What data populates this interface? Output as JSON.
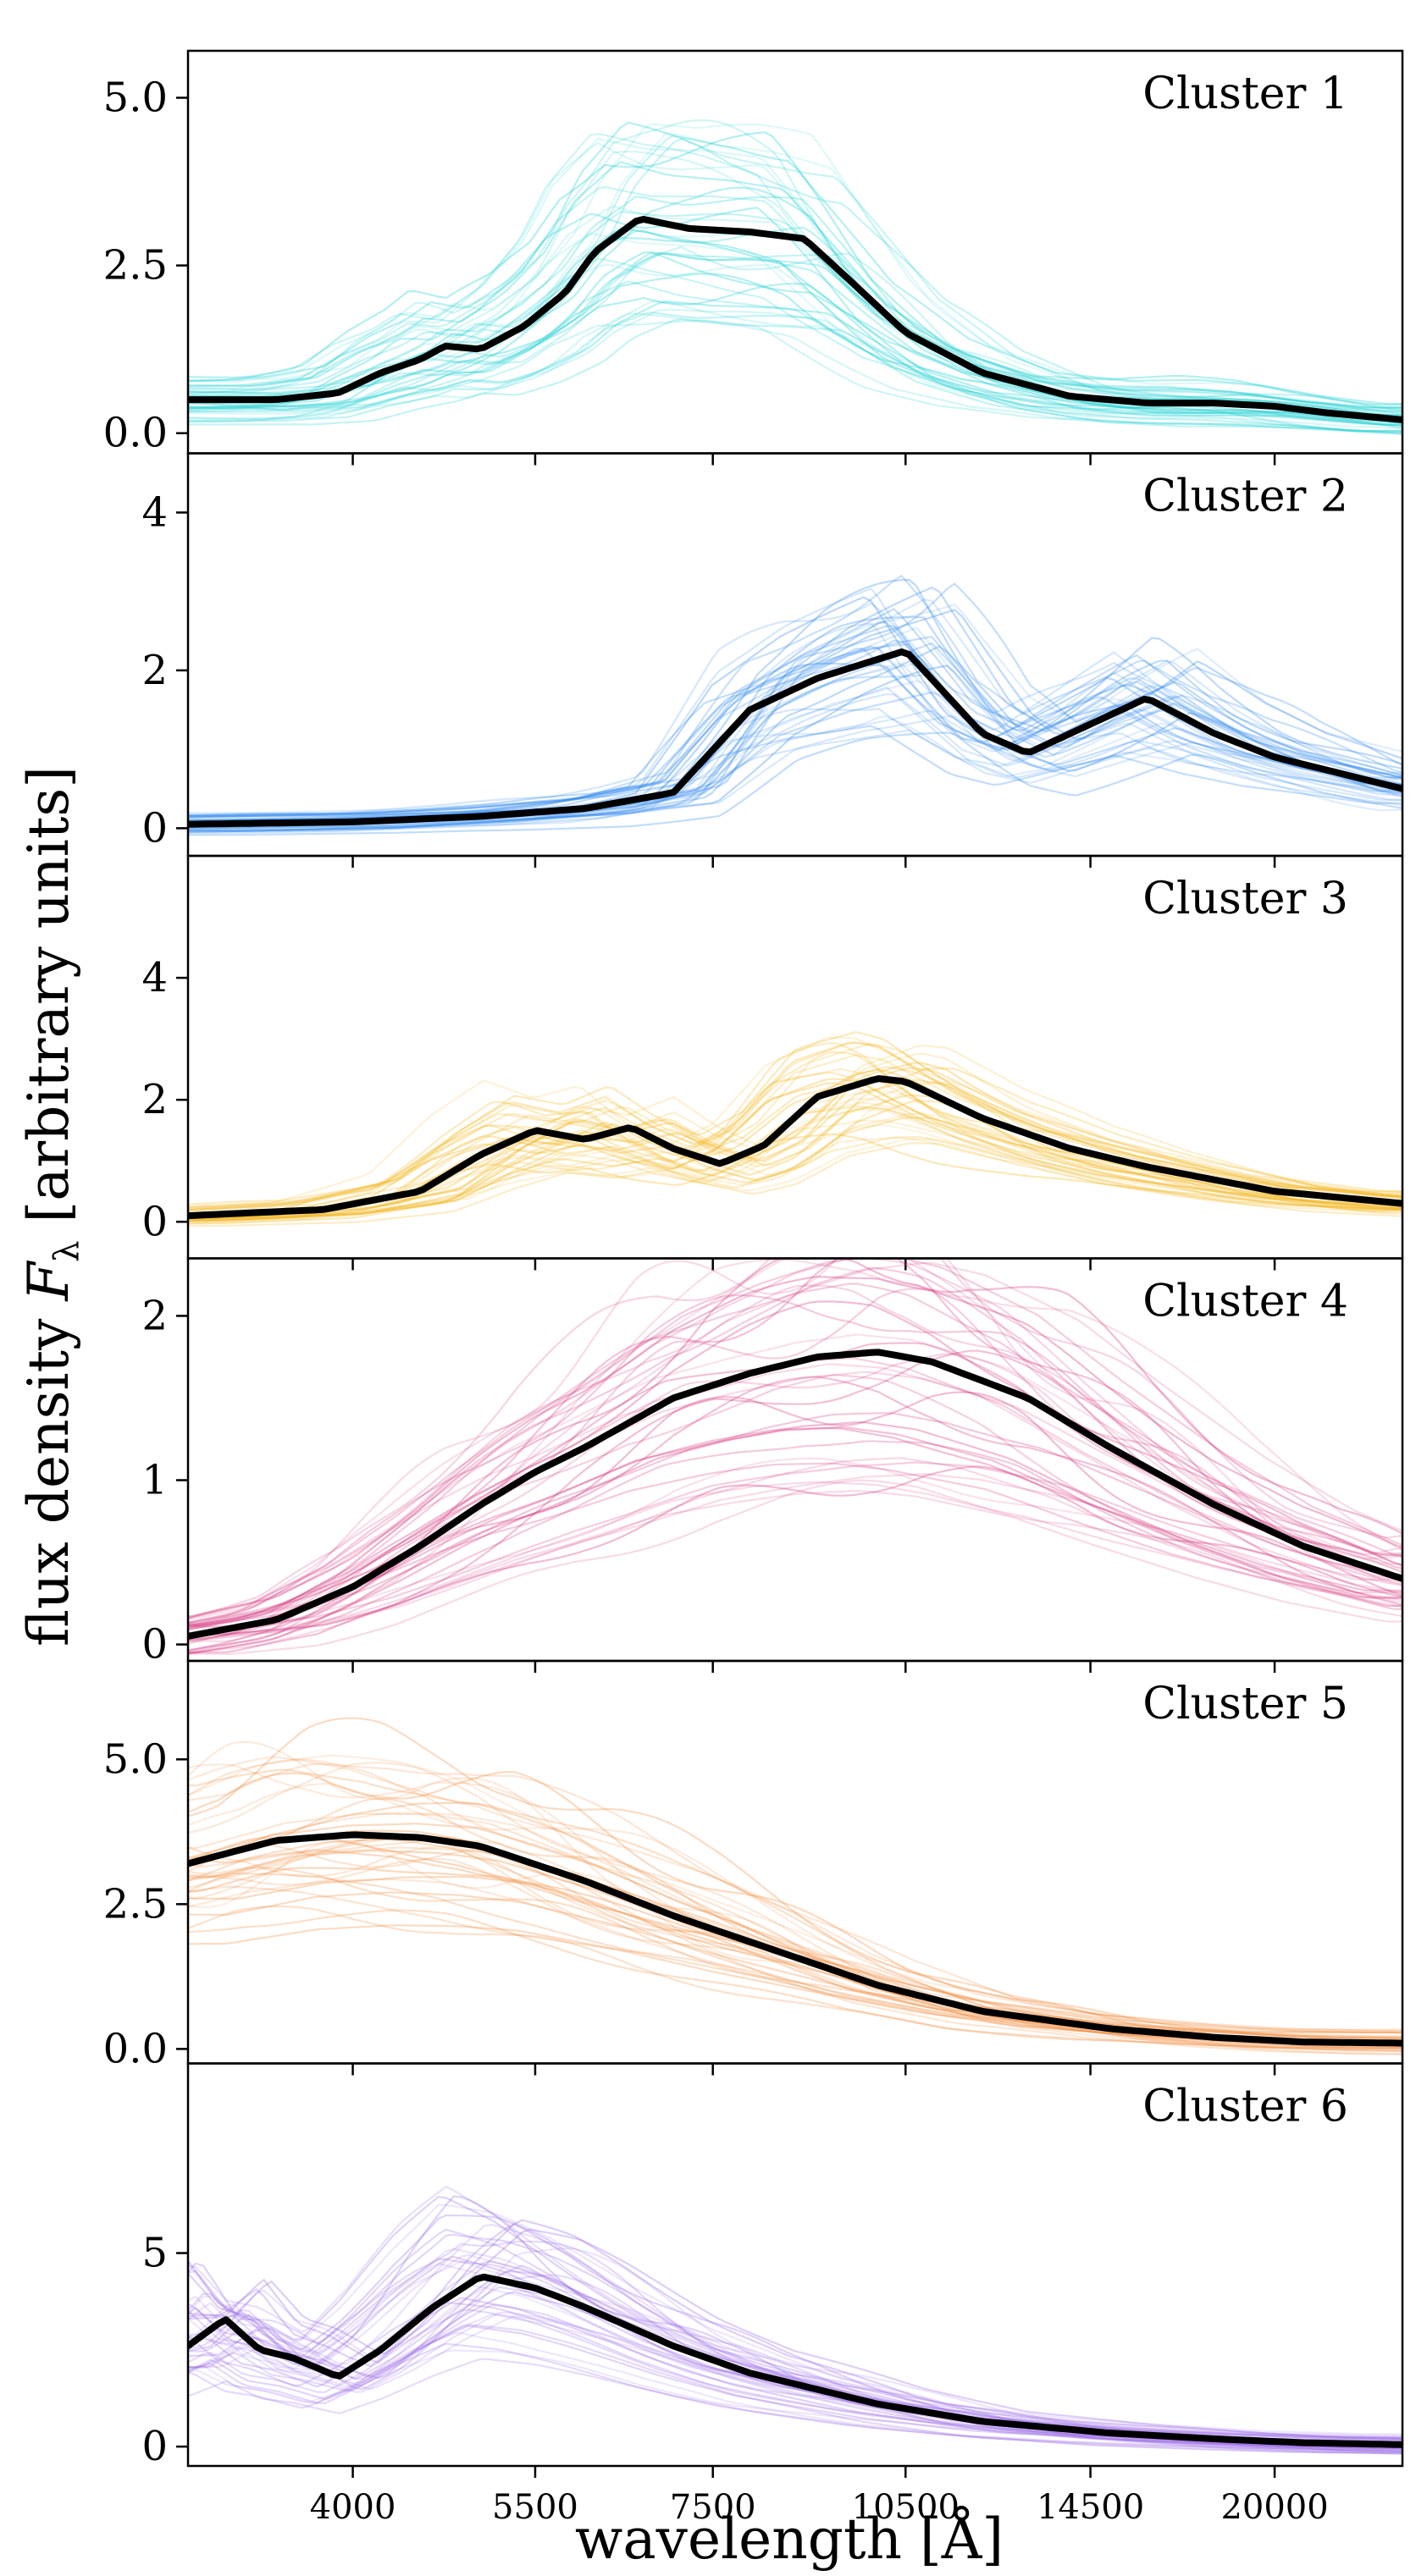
{
  "chart_data": {
    "type": "line",
    "xlabel_prefix": "wavelength ",
    "xlabel_unit": "[Å]",
    "ylabel_prefix": "flux density ",
    "ylabel_symbol": "F",
    "ylabel_subscript": "λ",
    "ylabel_suffix": " [arbitrary units]",
    "x_scale": "log",
    "xlim": [
      3000,
      25000
    ],
    "xticks": [
      {
        "value": 4000,
        "label": "4000"
      },
      {
        "value": 5500,
        "label": "5500"
      },
      {
        "value": 7500,
        "label": "7500"
      },
      {
        "value": 10500,
        "label": "10500"
      },
      {
        "value": 14500,
        "label": "14500"
      },
      {
        "value": 20000,
        "label": "20000"
      }
    ],
    "panels": [
      {
        "label": "Cluster 1",
        "color": "#1fd1d3",
        "ylim": [
          -0.3,
          5.7
        ],
        "yticks": [
          {
            "value": 0,
            "label": "0.0"
          },
          {
            "value": 2.5,
            "label": "2.5"
          },
          {
            "value": 5,
            "label": "5.0"
          }
        ],
        "mean": {
          "x": [
            3000,
            3500,
            3900,
            4200,
            4500,
            4700,
            5000,
            5400,
            5800,
            6100,
            6600,
            7200,
            8000,
            8800,
            9500,
            10500,
            12000,
            14000,
            16000,
            18000,
            20000,
            22000,
            25000
          ],
          "y": [
            0.5,
            0.5,
            0.6,
            0.9,
            1.1,
            1.3,
            1.25,
            1.6,
            2.1,
            2.7,
            3.2,
            3.05,
            3.0,
            2.9,
            2.3,
            1.5,
            0.9,
            0.55,
            0.45,
            0.45,
            0.4,
            0.3,
            0.2
          ]
        }
      },
      {
        "label": "Cluster 2",
        "color": "#2a86f0",
        "ylim": [
          -0.35,
          4.75
        ],
        "yticks": [
          {
            "value": 0,
            "label": "0"
          },
          {
            "value": 2,
            "label": "2"
          },
          {
            "value": 4,
            "label": "4"
          }
        ],
        "mean": {
          "x": [
            3000,
            4000,
            5000,
            6000,
            7000,
            8000,
            9000,
            10500,
            12000,
            13000,
            14000,
            16000,
            18000,
            20000,
            25000
          ],
          "y": [
            0.05,
            0.08,
            0.15,
            0.25,
            0.45,
            1.5,
            1.9,
            2.25,
            1.2,
            0.95,
            1.2,
            1.65,
            1.2,
            0.9,
            0.5
          ]
        }
      },
      {
        "label": "Cluster 3",
        "color": "#f4b418",
        "ylim": [
          -0.6,
          6.0
        ],
        "yticks": [
          {
            "value": 0,
            "label": "0"
          },
          {
            "value": 2,
            "label": "2"
          },
          {
            "value": 4,
            "label": "4"
          }
        ],
        "mean": {
          "x": [
            3000,
            3800,
            4500,
            5000,
            5500,
            6000,
            6500,
            7000,
            7600,
            8200,
            9000,
            10000,
            10500,
            12000,
            14000,
            16000,
            20000,
            25000
          ],
          "y": [
            0.1,
            0.2,
            0.5,
            1.1,
            1.5,
            1.35,
            1.55,
            1.2,
            0.95,
            1.25,
            2.05,
            2.35,
            2.3,
            1.7,
            1.2,
            0.9,
            0.5,
            0.3
          ]
        }
      },
      {
        "label": "Cluster 4",
        "color": "#d6337f",
        "ylim": [
          -0.1,
          2.35
        ],
        "yticks": [
          {
            "value": 0,
            "label": "0"
          },
          {
            "value": 1,
            "label": "1"
          },
          {
            "value": 2,
            "label": "2"
          }
        ],
        "mean": {
          "x": [
            3000,
            3500,
            4000,
            4500,
            5000,
            5500,
            6000,
            7000,
            8000,
            9000,
            10000,
            11000,
            13000,
            15000,
            18000,
            21000,
            25000
          ],
          "y": [
            0.05,
            0.15,
            0.35,
            0.6,
            0.85,
            1.05,
            1.2,
            1.5,
            1.65,
            1.75,
            1.78,
            1.72,
            1.5,
            1.2,
            0.85,
            0.6,
            0.4
          ]
        }
      },
      {
        "label": "Cluster 5",
        "color": "#f28b3c",
        "ylim": [
          -0.25,
          6.7
        ],
        "yticks": [
          {
            "value": 0,
            "label": "0.0"
          },
          {
            "value": 2.5,
            "label": "2.5"
          },
          {
            "value": 5,
            "label": "5.0"
          }
        ],
        "mean": {
          "x": [
            3000,
            3500,
            4000,
            4500,
            5000,
            6000,
            7000,
            8000,
            10000,
            12000,
            15000,
            18000,
            21000,
            25000
          ],
          "y": [
            3.2,
            3.6,
            3.7,
            3.65,
            3.5,
            2.9,
            2.3,
            1.85,
            1.1,
            0.65,
            0.35,
            0.2,
            0.12,
            0.1
          ]
        }
      },
      {
        "label": "Cluster 6",
        "color": "#9b6ae8",
        "ylim": [
          -0.5,
          9.9
        ],
        "yticks": [
          {
            "value": 0,
            "label": "0"
          },
          {
            "value": 5,
            "label": "5"
          }
        ],
        "mean": {
          "x": [
            3000,
            3200,
            3400,
            3600,
            3900,
            4200,
            4600,
            5000,
            5500,
            6000,
            7000,
            8000,
            10000,
            12000,
            15000,
            18000,
            21000,
            25000
          ],
          "y": [
            2.6,
            3.3,
            2.5,
            2.3,
            1.8,
            2.5,
            3.6,
            4.4,
            4.1,
            3.6,
            2.6,
            1.9,
            1.1,
            0.65,
            0.35,
            0.2,
            0.1,
            0.05
          ]
        }
      }
    ]
  }
}
